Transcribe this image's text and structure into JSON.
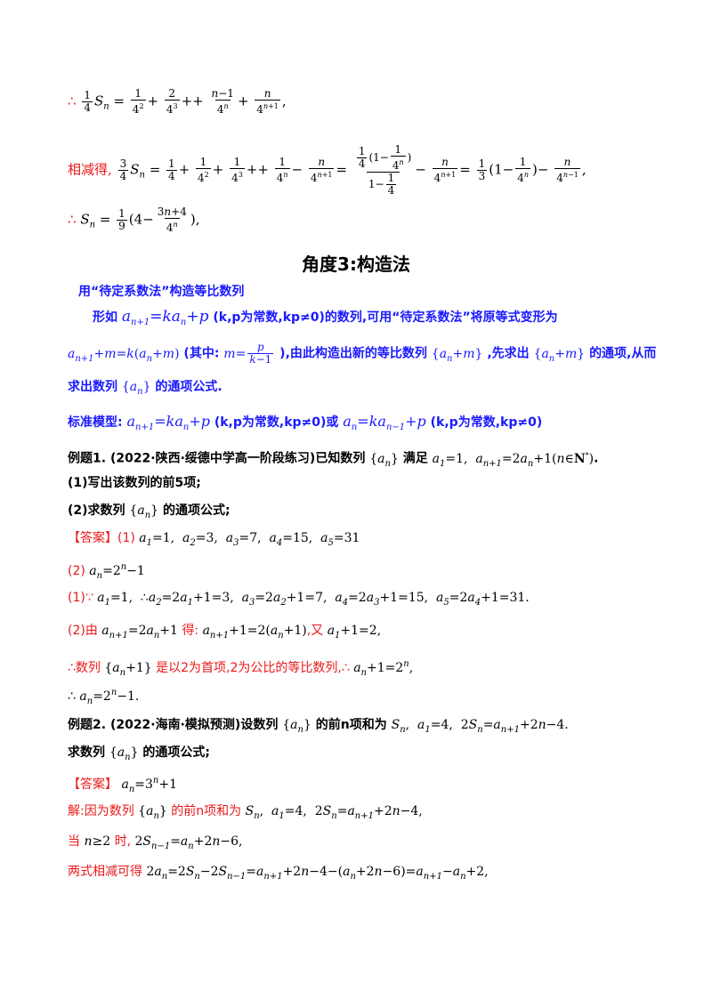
{
  "line1": {
    "prefix": "∴ ",
    "tail": ","
  },
  "line2": {
    "label": "相减得,",
    "tail": ","
  },
  "line3": {
    "prefix": "∴ ",
    "tail": ","
  },
  "section_title": "角度3:构造法",
  "method_heading": "用“待定系数法”构造等比数列",
  "para1": {
    "a": "形如",
    "b": "(k,p为常数,kp≠0)的数列,可用“待定系数法”将原等式变形为"
  },
  "para2": {
    "a": "(其中:",
    "b": "),由此构造出新的等比数列",
    "c": ",先求出",
    "d": "的通项,从而"
  },
  "para3": {
    "a": "求出数列",
    "b": "的通项公式."
  },
  "model": {
    "label": "标准模型:",
    "a": "(k,p为常数,kp≠0)或",
    "b": "(k,p为常数,kp≠0)"
  },
  "ex1": {
    "label": "例题1.",
    "source": "(2022·陕西·绥德中学高一阶段练习)已知数列",
    "cond": "满足",
    "end": "."
  },
  "ex1_q1": "(1)写出该数列的前5项;",
  "ex1_q2": {
    "a": "(2)求数列",
    "b": "的通项公式;"
  },
  "ans1": {
    "label": "【答案】",
    "a": "(1)"
  },
  "ans1_2": "(2)",
  "sol1_1": "(1)∵",
  "sol1_2": {
    "a": "(2)由",
    "b": "得:",
    "c": ",又"
  },
  "sol1_3": {
    "a": "∴数列",
    "b": "是以2为首项,2为公比的等比数列,∴"
  },
  "sol1_4": "∴",
  "ex2": {
    "label": "例题2.",
    "source": "(2022·海南·模拟预测)设数列",
    "mid": "的前n项和为"
  },
  "ex2_q": {
    "a": "求数列",
    "b": "的通项公式;"
  },
  "ans2": {
    "label": "【答案】"
  },
  "sol2_1": {
    "a": "解:因为数列",
    "b": "的前n项和为"
  },
  "sol2_2": {
    "a": "当",
    "b": "时,"
  },
  "sol2_3": "两式相减可得"
}
